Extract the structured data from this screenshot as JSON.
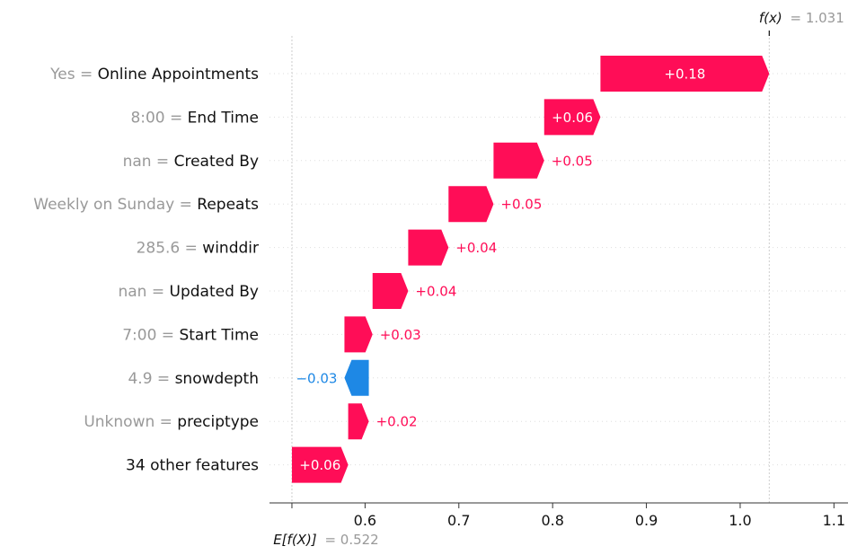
{
  "chart_data": {
    "type": "waterfall",
    "title": "",
    "xlim": [
      0.5,
      1.115
    ],
    "x_ticks": [
      {
        "value": 0.6,
        "label": "0.6"
      },
      {
        "value": 0.7,
        "label": "0.7"
      },
      {
        "value": 0.8,
        "label": "0.8"
      },
      {
        "value": 0.9,
        "label": "0.9"
      },
      {
        "value": 1.0,
        "label": "1.0"
      },
      {
        "value": 1.1,
        "label": "1.1"
      }
    ],
    "base_value": 0.522,
    "base_label_expr": "E[f(X)]",
    "base_label_value": "= 0.522",
    "output_value": 1.031,
    "output_label_expr": "f(x)",
    "output_label_value": "= 1.031",
    "features": [
      {
        "value_text": "Yes",
        "name": "Online Appointments",
        "start": 0.851,
        "end": 1.031,
        "label": "+0.18",
        "sign": "pos"
      },
      {
        "value_text": "8:00",
        "name": "End Time",
        "start": 0.791,
        "end": 0.851,
        "label": "+0.06",
        "sign": "pos"
      },
      {
        "value_text": "nan",
        "name": "Created By",
        "start": 0.737,
        "end": 0.791,
        "label": "+0.05",
        "sign": "pos"
      },
      {
        "value_text": "Weekly on Sunday",
        "name": "Repeats",
        "start": 0.689,
        "end": 0.737,
        "label": "+0.05",
        "sign": "pos"
      },
      {
        "value_text": "285.6",
        "name": "winddir",
        "start": 0.646,
        "end": 0.689,
        "label": "+0.04",
        "sign": "pos"
      },
      {
        "value_text": "nan",
        "name": "Updated By",
        "start": 0.608,
        "end": 0.646,
        "label": "+0.04",
        "sign": "pos"
      },
      {
        "value_text": "7:00",
        "name": "Start Time",
        "start": 0.578,
        "end": 0.608,
        "label": "+0.03",
        "sign": "pos"
      },
      {
        "value_text": "4.9",
        "name": "snowdepth",
        "start": 0.604,
        "end": 0.578,
        "label": "−0.03",
        "sign": "neg"
      },
      {
        "value_text": "Unknown",
        "name": "preciptype",
        "start": 0.582,
        "end": 0.604,
        "label": "+0.02",
        "sign": "pos"
      },
      {
        "value_text": "",
        "name": "34 other features",
        "start": 0.522,
        "end": 0.582,
        "label": "+0.06",
        "sign": "pos"
      }
    ],
    "colors": {
      "positive": "#ff0d57",
      "negative": "#1e88e5",
      "axis": "#333333",
      "guide": "#cccccc",
      "muted_text": "#999999"
    }
  }
}
